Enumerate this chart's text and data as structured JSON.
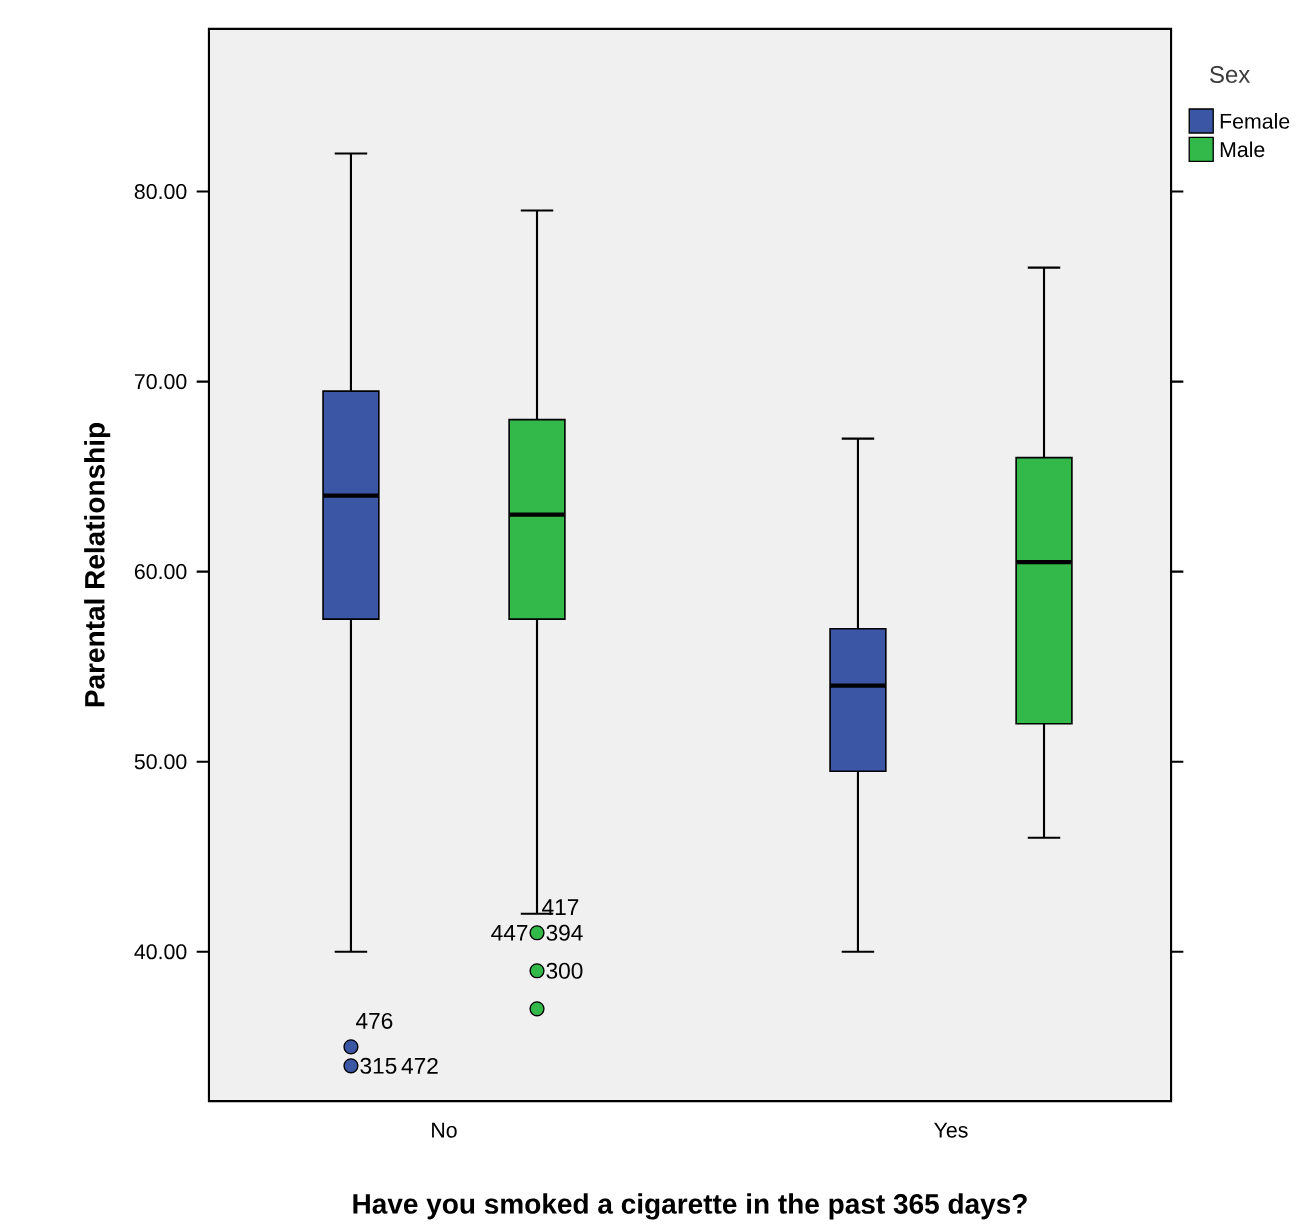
{
  "chart_data": {
    "type": "box",
    "xlabel": "Have you smoked a cigarette in the past 365 days?",
    "ylabel": "Parental Relationship",
    "legend_title": "Sex",
    "legend": "top right",
    "categories": [
      "No",
      "Yes"
    ],
    "ylim": [
      32.2,
      88.5
    ],
    "yticks": [
      {
        "value": 40,
        "label": "40.00"
      },
      {
        "value": 50,
        "label": "50.00"
      },
      {
        "value": 60,
        "label": "60.00"
      },
      {
        "value": 70,
        "label": "70.00"
      },
      {
        "value": 80,
        "label": "80.00"
      }
    ],
    "series": [
      {
        "name": "Female",
        "color": "#3c56a6",
        "boxes": [
          {
            "low": 40,
            "q1": 57.5,
            "median": 64,
            "q3": 69.5,
            "high": 82,
            "outliers": [
              35,
              34
            ]
          },
          {
            "low": 40,
            "q1": 49.5,
            "median": 54,
            "q3": 57,
            "high": 67
          }
        ]
      },
      {
        "name": "Male",
        "color": "#33b84a",
        "boxes": [
          {
            "low": 42,
            "q1": 57.5,
            "median": 63,
            "q3": 68,
            "high": 79,
            "outliers": [
              41,
              39,
              37
            ]
          },
          {
            "low": 46,
            "q1": 52,
            "median": 60.5,
            "q3": 66,
            "high": 76
          }
        ]
      }
    ],
    "annotations": [
      "476",
      "315",
      "472",
      "394",
      "447",
      "417",
      "300"
    ]
  }
}
